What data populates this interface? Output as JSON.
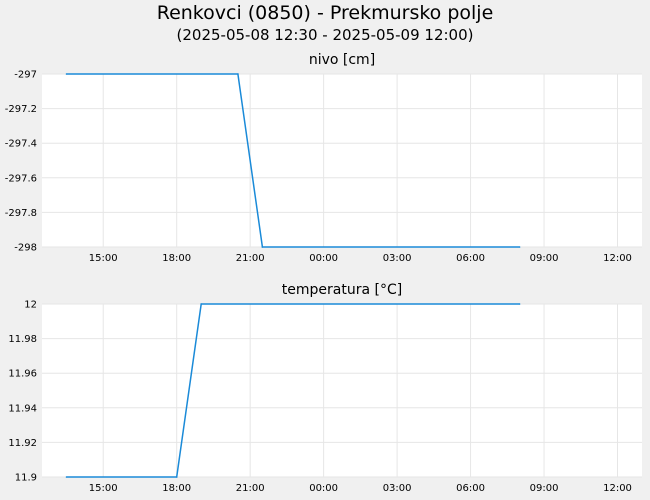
{
  "header": {
    "title": "Renkovci (0850) - Prekmursko polje",
    "subtitle": "(2025-05-08 12:30 - 2025-05-09 12:00)"
  },
  "colors": {
    "line": "#1a8ad8",
    "grid": "#e6e6e6",
    "plot_bg": "#ffffff",
    "page_bg": "#f0f0f0"
  },
  "chart_data": [
    {
      "type": "line",
      "title": "nivo [cm]",
      "xlabel": "",
      "ylabel": "",
      "x_ticks": [
        "15:00",
        "18:00",
        "21:00",
        "00:00",
        "03:00",
        "06:00",
        "09:00",
        "12:00"
      ],
      "y_ticks": [
        "-297",
        "-297.2",
        "-297.4",
        "-297.6",
        "-297.8",
        "-298"
      ],
      "xlim": [
        "2025-05-08 12:30",
        "2025-05-09 13:00"
      ],
      "ylim": [
        -298,
        -297
      ],
      "grid": true,
      "series": [
        {
          "x": [
            "2025-05-08 13:30",
            "2025-05-08 20:30",
            "2025-05-08 21:30",
            "2025-05-09 08:00"
          ],
          "y": [
            -297,
            -297,
            -298,
            -298
          ]
        }
      ]
    },
    {
      "type": "line",
      "title": "temperatura [°C]",
      "xlabel": "",
      "ylabel": "",
      "x_ticks": [
        "15:00",
        "18:00",
        "21:00",
        "00:00",
        "03:00",
        "06:00",
        "09:00",
        "12:00"
      ],
      "y_ticks": [
        "12",
        "11.98",
        "11.96",
        "11.94",
        "11.92",
        "11.9"
      ],
      "xlim": [
        "2025-05-08 12:30",
        "2025-05-09 13:00"
      ],
      "ylim": [
        11.9,
        12
      ],
      "grid": true,
      "series": [
        {
          "x": [
            "2025-05-08 13:30",
            "2025-05-08 18:00",
            "2025-05-08 19:00",
            "2025-05-09 08:00"
          ],
          "y": [
            11.9,
            11.9,
            12,
            12
          ]
        }
      ]
    }
  ]
}
